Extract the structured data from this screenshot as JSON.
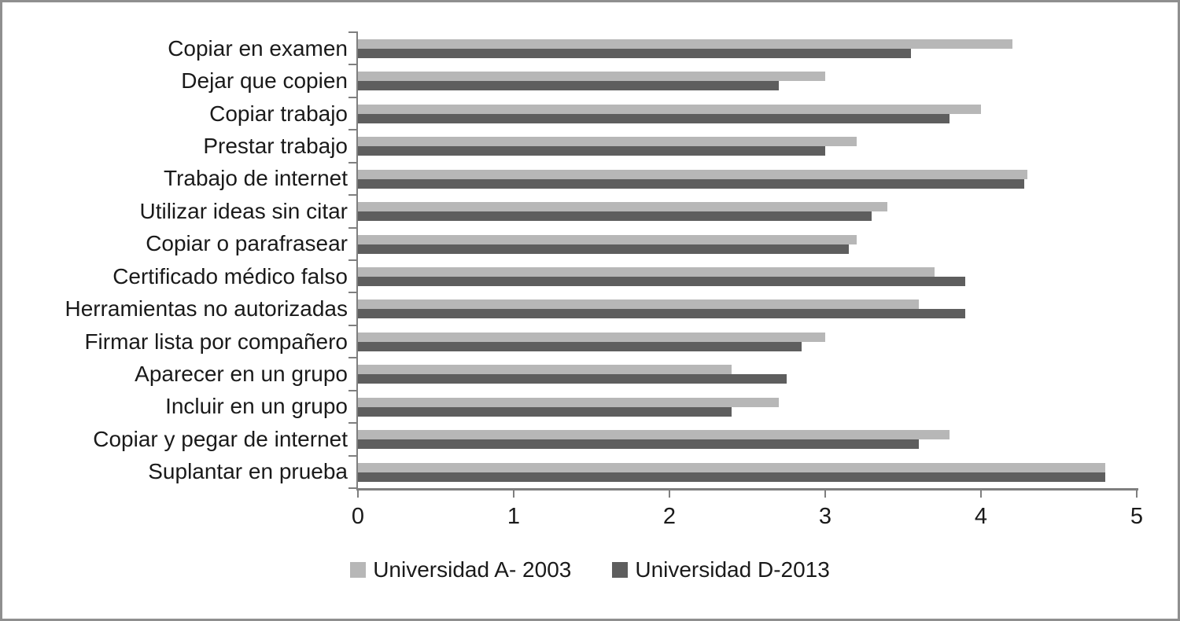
{
  "chart_data": {
    "type": "bar",
    "orientation": "horizontal",
    "title": "",
    "xlabel": "",
    "ylabel": "",
    "xlim": [
      0,
      5
    ],
    "x_ticks": [
      "0",
      "1",
      "2",
      "3",
      "4",
      "5"
    ],
    "grid": false,
    "legend_position": "bottom",
    "categories": [
      "Copiar en examen",
      "Dejar que copien",
      "Copiar trabajo",
      "Prestar trabajo",
      "Trabajo de internet",
      "Utilizar ideas sin citar",
      "Copiar o parafrasear",
      "Certificado médico falso",
      "Herramientas no autorizadas",
      "Firmar lista por compañero",
      "Aparecer en un grupo",
      "Incluir en un grupo",
      "Copiar y pegar de internet",
      "Suplantar en prueba"
    ],
    "series": [
      {
        "name": "Universidad A- 2003",
        "color": "#b7b7b7",
        "values": [
          4.2,
          3.0,
          4.0,
          3.2,
          4.3,
          3.4,
          3.2,
          3.7,
          3.6,
          3.0,
          2.4,
          2.7,
          3.8,
          4.8
        ]
      },
      {
        "name": "Universidad D-2013",
        "color": "#5e5e5e",
        "values": [
          3.55,
          2.7,
          3.8,
          3.0,
          4.28,
          3.3,
          3.15,
          3.9,
          3.9,
          2.85,
          2.75,
          2.4,
          3.6,
          4.8
        ]
      }
    ]
  },
  "colors": {
    "axis": "#7f7f7f",
    "text": "#1a1a1a",
    "frame_border": "#8f8f8f",
    "background": "#ffffff"
  }
}
